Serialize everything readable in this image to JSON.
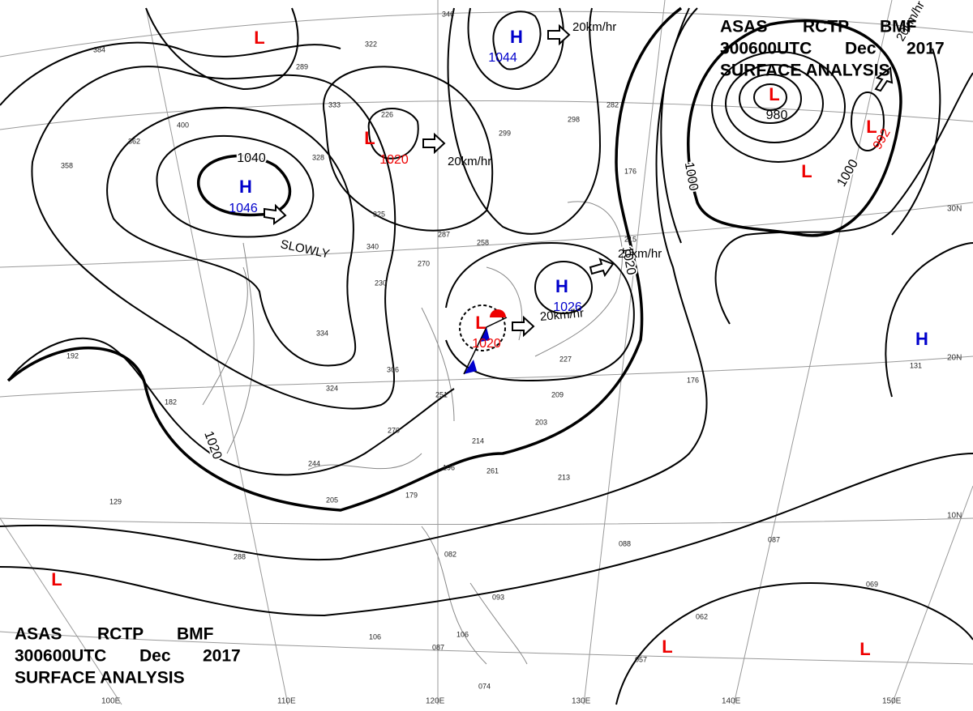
{
  "header_top": {
    "line1": [
      "ASAS",
      "RCTP",
      "BMF"
    ],
    "line2": [
      "300600UTC",
      "Dec",
      "2017"
    ],
    "line3": "SURFACE ANALYSIS"
  },
  "header_bottom": {
    "line1": [
      "ASAS",
      "RCTP",
      "BMF"
    ],
    "line2": [
      "300600UTC",
      "Dec",
      "2017"
    ],
    "line3": "SURFACE ANALYSIS"
  },
  "systems": [
    {
      "label": "H",
      "pressure": "1046"
    },
    {
      "label": "H",
      "pressure": "1044"
    },
    {
      "label": "L",
      "pressure": "1020"
    },
    {
      "label": "H",
      "pressure": "1026"
    },
    {
      "label": "L",
      "pressure": "1020"
    },
    {
      "label": "L",
      "pressure": "980"
    },
    {
      "label": "L",
      "pressure": "992"
    },
    {
      "label": "H"
    },
    {
      "label": "L"
    },
    {
      "label": "L"
    },
    {
      "label": "L"
    },
    {
      "label": "L"
    },
    {
      "label": "L"
    }
  ],
  "isobar_labels": [
    "1040",
    "1020",
    "1000",
    "1000",
    "1020"
  ],
  "motion_labels": [
    "20km/hr",
    "20km/hr",
    "SLOWLY",
    "20km/hr",
    "20km/hr",
    "20km/hr"
  ],
  "latitude_labels": [
    "30N",
    "20N",
    "10N"
  ],
  "longitude_labels": [
    "100E",
    "110E",
    "120E",
    "130E",
    "140E",
    "150E"
  ],
  "stations": [
    "346",
    "384",
    "322",
    "289",
    "333",
    "226",
    "299",
    "298",
    "282",
    "362",
    "400",
    "358",
    "328",
    "325",
    "340",
    "287",
    "258",
    "270",
    "230",
    "334",
    "192",
    "182",
    "306",
    "324",
    "251",
    "209",
    "203",
    "214",
    "196",
    "261",
    "270",
    "244",
    "205",
    "179",
    "213",
    "129",
    "288",
    "106",
    "082",
    "093",
    "106",
    "087",
    "088",
    "087",
    "069",
    "062",
    "057",
    "074",
    "131",
    "176",
    "176",
    "215",
    "227"
  ]
}
